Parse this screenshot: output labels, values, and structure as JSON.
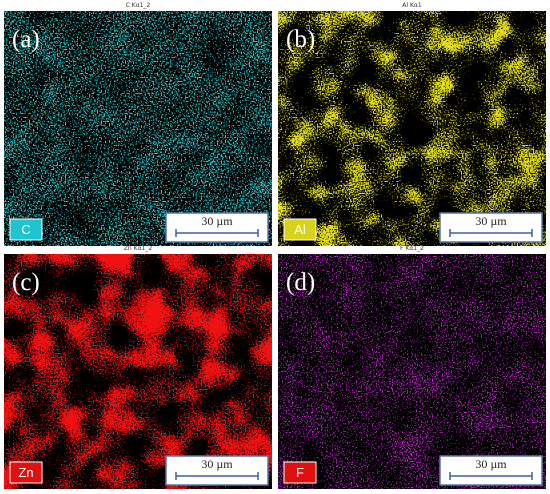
{
  "panels": [
    {
      "map_label": "C Kα1_2",
      "letter": "(a)",
      "element": "C",
      "scale_bar": "30 µm"
    },
    {
      "map_label": "Al Kα1",
      "letter": "(b)",
      "element": "Al",
      "scale_bar": "30 µm"
    },
    {
      "map_label": "Zn Kα1_2",
      "letter": "(c)",
      "element": "Zn",
      "scale_bar": "30 µm"
    },
    {
      "map_label": "F Kα1_2",
      "letter": "(d)",
      "element": "F",
      "scale_bar": "30 µm"
    }
  ]
}
